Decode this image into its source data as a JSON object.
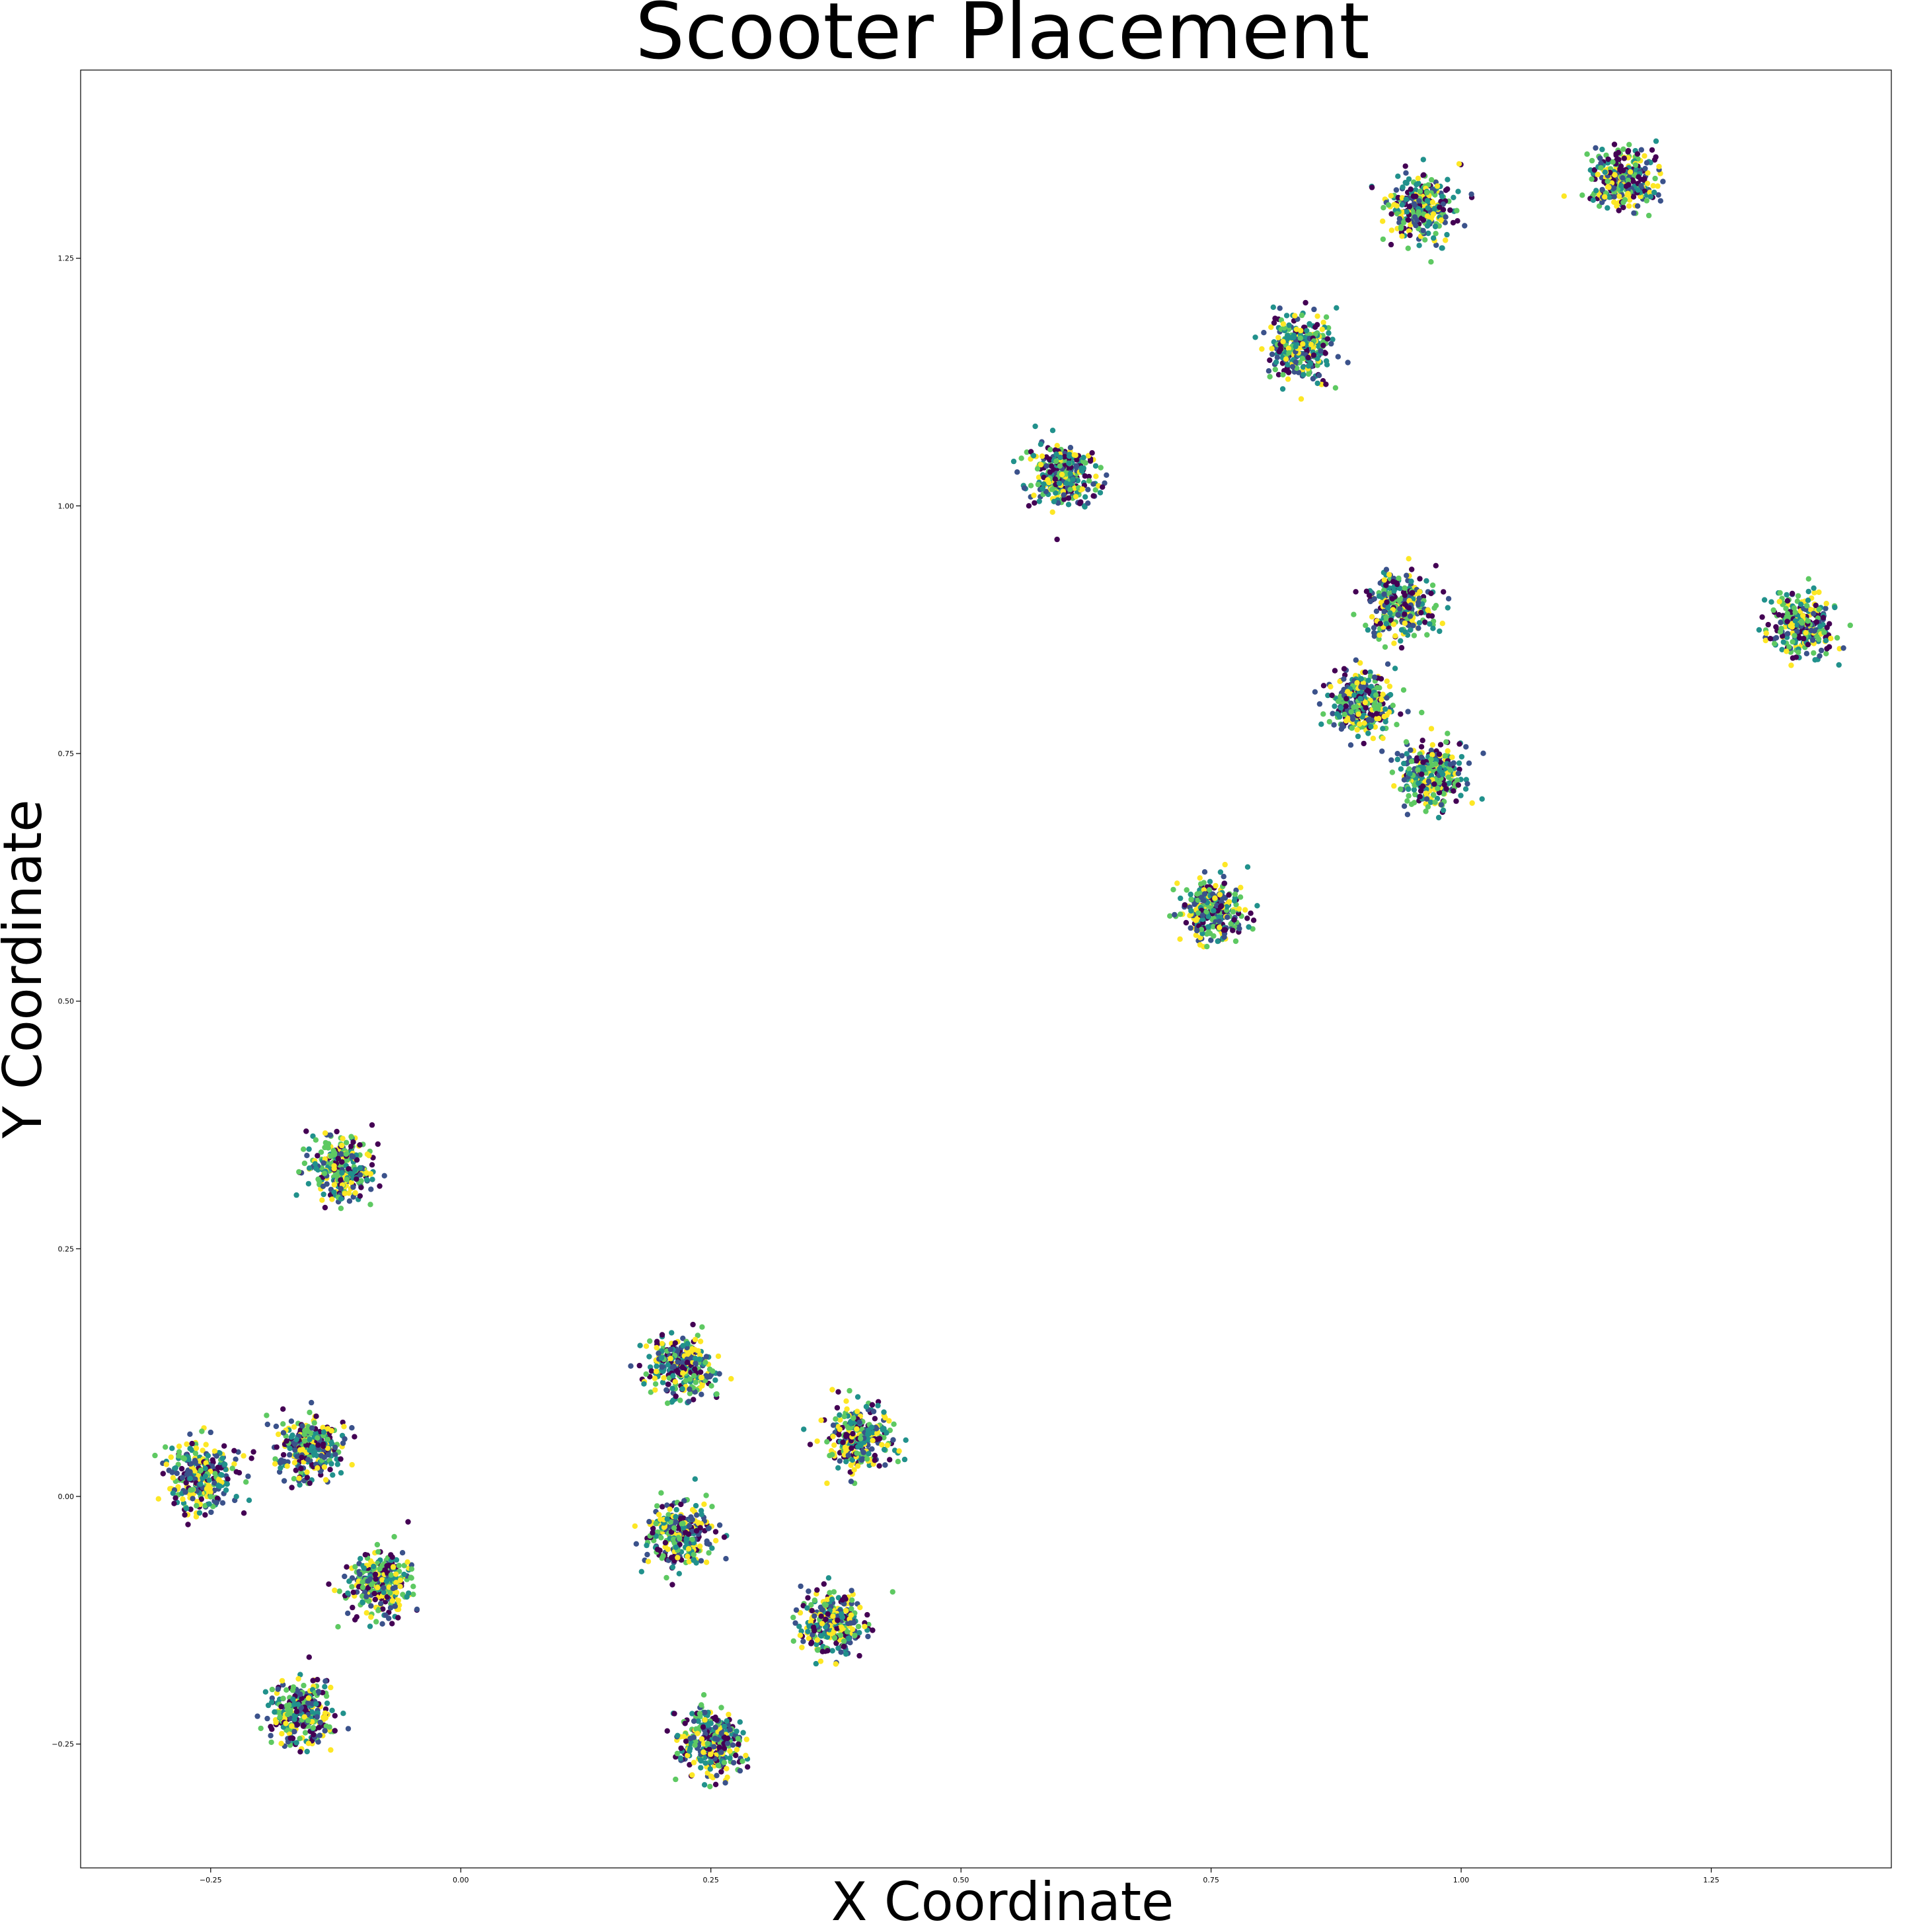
{
  "chart_data": {
    "type": "scatter",
    "title": "Scooter Placement",
    "xlabel": "X Coordinate",
    "ylabel": "Y Coordinate",
    "xlim": [
      -0.38,
      1.43
    ],
    "ylim": [
      -0.375,
      1.44
    ],
    "xticks": [
      -0.25,
      0.0,
      0.25,
      0.5,
      0.75,
      1.0,
      1.25
    ],
    "yticks": [
      -0.25,
      0.0,
      0.25,
      0.5,
      0.75,
      1.0,
      1.25
    ],
    "xtick_labels": [
      "−0.25",
      "0.00",
      "0.25",
      "0.50",
      "0.75",
      "1.00",
      "1.25"
    ],
    "ytick_labels": [
      "−0.25",
      "0.00",
      "0.25",
      "0.50",
      "0.75",
      "1.00",
      "1.25"
    ],
    "grid": false,
    "legend": "none",
    "colormap": [
      "#440154",
      "#3b528b",
      "#21918c",
      "#5ec962",
      "#fde725"
    ],
    "cluster_centers": [
      {
        "x": 1.16,
        "y": 1.33
      },
      {
        "x": 0.96,
        "y": 1.3
      },
      {
        "x": 0.84,
        "y": 1.16
      },
      {
        "x": 0.6,
        "y": 1.03
      },
      {
        "x": 0.94,
        "y": 0.9
      },
      {
        "x": 1.34,
        "y": 0.88
      },
      {
        "x": 0.9,
        "y": 0.8
      },
      {
        "x": 0.97,
        "y": 0.73
      },
      {
        "x": 0.75,
        "y": 0.59
      },
      {
        "x": -0.12,
        "y": 0.33
      },
      {
        "x": 0.22,
        "y": 0.13
      },
      {
        "x": 0.4,
        "y": 0.06
      },
      {
        "x": -0.26,
        "y": 0.02
      },
      {
        "x": -0.15,
        "y": 0.05
      },
      {
        "x": 0.22,
        "y": -0.04
      },
      {
        "x": -0.08,
        "y": -0.09
      },
      {
        "x": 0.37,
        "y": -0.13
      },
      {
        "x": -0.16,
        "y": -0.22
      },
      {
        "x": 0.25,
        "y": -0.25
      }
    ],
    "points_per_cluster": 300,
    "cluster_spread": 0.016
  }
}
